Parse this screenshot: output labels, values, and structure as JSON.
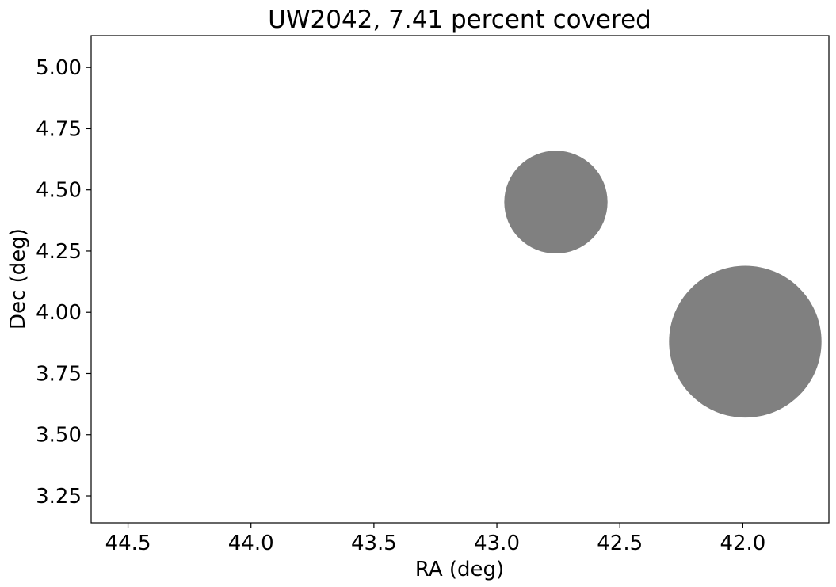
{
  "chart_data": {
    "type": "scatter",
    "title": "UW2042, 7.41 percent covered",
    "xlabel": "RA (deg)",
    "ylabel": "Dec (deg)",
    "xlim": [
      44.65,
      41.65
    ],
    "ylim": [
      3.14,
      5.13
    ],
    "x_ticks": [
      "44.5",
      "44.0",
      "43.5",
      "43.0",
      "42.5",
      "42.0"
    ],
    "y_ticks": [
      "3.25",
      "3.50",
      "3.75",
      "4.00",
      "4.25",
      "4.50",
      "4.75",
      "5.00"
    ],
    "grid": false,
    "fill_color": "#808080",
    "circles": [
      {
        "ra": 42.76,
        "dec": 4.45,
        "radius": 0.21
      },
      {
        "ra": 41.99,
        "dec": 3.88,
        "radius": 0.31
      }
    ]
  }
}
